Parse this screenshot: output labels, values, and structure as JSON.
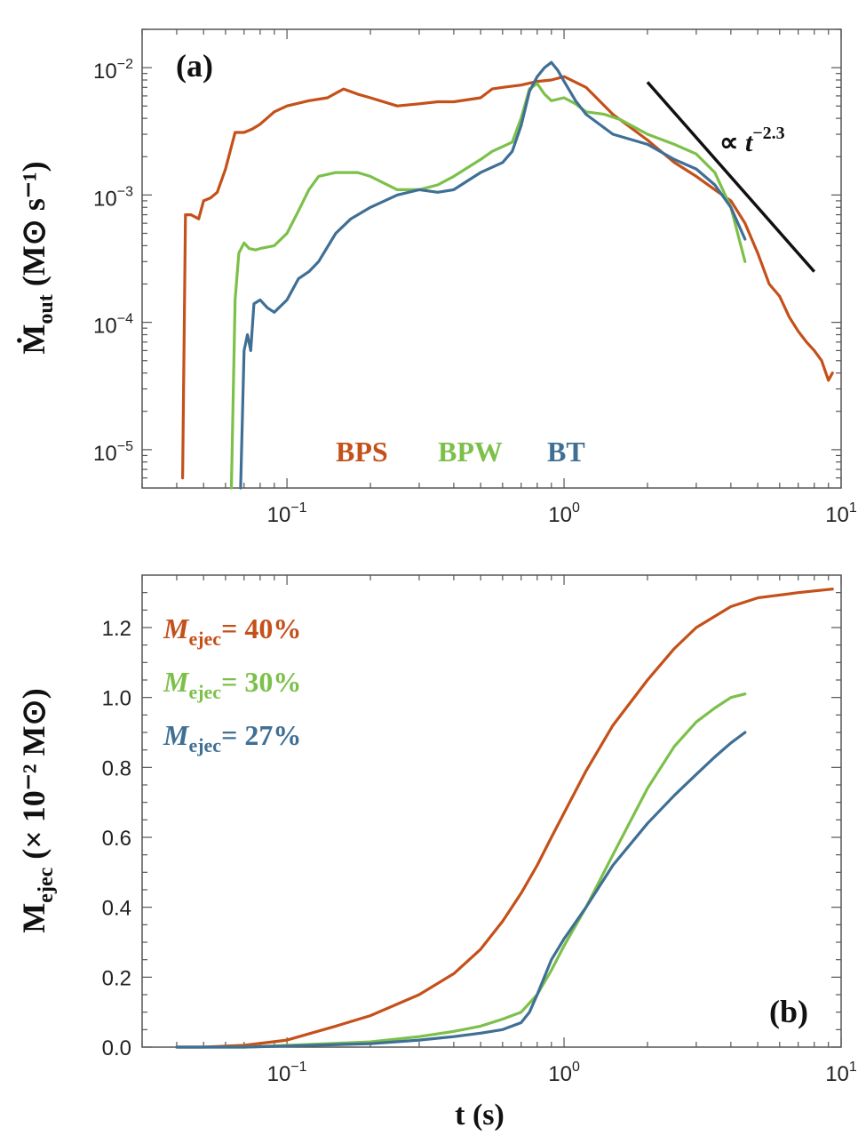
{
  "colors": {
    "BPS": "#c4501a",
    "BPW": "#7cc04a",
    "BT": "#3f6f95",
    "black": "#111111"
  },
  "chart_data": [
    {
      "type": "line",
      "panel_label": "(a)",
      "ylabel_main": "Ṁ",
      "ylabel_sub": "out",
      "ylabel_unit": "(M⊙ s⁻¹)",
      "xscale": "log",
      "yscale": "log",
      "xlim": [
        0.03,
        10
      ],
      "ylim": [
        5e-06,
        0.02
      ],
      "xticks": [
        {
          "v": 0.1,
          "base": "10",
          "exp": "−1"
        },
        {
          "v": 1,
          "base": "10",
          "exp": "0"
        },
        {
          "v": 10,
          "base": "10",
          "exp": "1"
        }
      ],
      "yticks": [
        {
          "v": 1e-05,
          "base": "10",
          "exp": "−5"
        },
        {
          "v": 0.0001,
          "base": "10",
          "exp": "−4"
        },
        {
          "v": 0.001,
          "base": "10",
          "exp": "−3"
        },
        {
          "v": 0.01,
          "base": "10",
          "exp": "−2"
        }
      ],
      "legend": [
        "BPS",
        "BPW",
        "BT"
      ],
      "annotation": {
        "prefix": "∝ ",
        "var": "t",
        "exp": "−2.3"
      },
      "powerlaw_line": {
        "x": [
          2.0,
          8.0
        ],
        "y": [
          0.0077,
          0.00025
        ]
      },
      "series": [
        {
          "name": "BPS",
          "x": [
            0.042,
            0.043,
            0.045,
            0.048,
            0.05,
            0.053,
            0.056,
            0.06,
            0.065,
            0.07,
            0.075,
            0.08,
            0.09,
            0.1,
            0.12,
            0.14,
            0.16,
            0.18,
            0.2,
            0.25,
            0.3,
            0.35,
            0.4,
            0.5,
            0.55,
            0.6,
            0.7,
            0.8,
            0.9,
            1.0,
            1.2,
            1.5,
            2.0,
            2.5,
            3.0,
            3.5,
            4.0,
            4.5,
            5.0,
            5.5,
            6.0,
            6.5,
            7.0,
            7.5,
            8.0,
            8.5,
            9.0,
            9.3
          ],
          "y": [
            6e-06,
            0.0007,
            0.0007,
            0.00065,
            0.0009,
            0.00095,
            0.00105,
            0.0016,
            0.0031,
            0.0031,
            0.0033,
            0.0036,
            0.0045,
            0.005,
            0.0055,
            0.0058,
            0.0068,
            0.0062,
            0.0058,
            0.005,
            0.0052,
            0.0054,
            0.0054,
            0.0058,
            0.0068,
            0.007,
            0.0073,
            0.0078,
            0.008,
            0.0085,
            0.007,
            0.0043,
            0.0027,
            0.0018,
            0.0014,
            0.0011,
            0.0009,
            0.0006,
            0.00035,
            0.0002,
            0.00016,
            0.00011,
            8.5e-05,
            7e-05,
            6e-05,
            5e-05,
            3.5e-05,
            4e-05
          ]
        },
        {
          "name": "BPW",
          "x": [
            0.063,
            0.065,
            0.067,
            0.07,
            0.073,
            0.077,
            0.08,
            0.09,
            0.1,
            0.11,
            0.12,
            0.13,
            0.15,
            0.18,
            0.2,
            0.25,
            0.3,
            0.35,
            0.4,
            0.5,
            0.55,
            0.6,
            0.65,
            0.7,
            0.75,
            0.8,
            0.85,
            0.9,
            1.0,
            1.1,
            1.2,
            1.4,
            1.6,
            2.0,
            2.5,
            3.0,
            3.5,
            4.0,
            4.5
          ],
          "y": [
            5e-06,
            0.00015,
            0.00035,
            0.00042,
            0.00038,
            0.00037,
            0.00038,
            0.0004,
            0.0005,
            0.00075,
            0.0011,
            0.0014,
            0.0015,
            0.0015,
            0.0014,
            0.0011,
            0.0011,
            0.0012,
            0.0014,
            0.0019,
            0.0022,
            0.0024,
            0.0026,
            0.004,
            0.0068,
            0.0075,
            0.0062,
            0.0055,
            0.0058,
            0.0052,
            0.0045,
            0.0043,
            0.0039,
            0.003,
            0.0025,
            0.0021,
            0.0015,
            0.0008,
            0.0003
          ]
        },
        {
          "name": "BT",
          "x": [
            0.068,
            0.07,
            0.072,
            0.074,
            0.076,
            0.08,
            0.085,
            0.09,
            0.1,
            0.11,
            0.12,
            0.13,
            0.15,
            0.17,
            0.2,
            0.25,
            0.3,
            0.35,
            0.4,
            0.45,
            0.5,
            0.6,
            0.65,
            0.7,
            0.75,
            0.8,
            0.85,
            0.9,
            0.95,
            1.0,
            1.1,
            1.2,
            1.5,
            2.0,
            2.5,
            3.0,
            3.5,
            4.0,
            4.5
          ],
          "y": [
            5e-06,
            6e-05,
            8e-05,
            6e-05,
            0.00014,
            0.00015,
            0.00013,
            0.00012,
            0.00015,
            0.00022,
            0.00025,
            0.0003,
            0.0005,
            0.00065,
            0.0008,
            0.001,
            0.0011,
            0.00105,
            0.0011,
            0.0013,
            0.0015,
            0.0018,
            0.0022,
            0.0035,
            0.0065,
            0.0085,
            0.01,
            0.011,
            0.0095,
            0.0078,
            0.0055,
            0.0043,
            0.003,
            0.0025,
            0.0019,
            0.0016,
            0.0012,
            0.0008,
            0.00045
          ]
        }
      ]
    },
    {
      "type": "line",
      "panel_label": "(b)",
      "ylabel_main": "M",
      "ylabel_sub": "ejec",
      "ylabel_unit": "(× 10⁻² M⊙)",
      "xlabel": "t (s)",
      "xscale": "log",
      "yscale": "linear",
      "xlim": [
        0.03,
        10
      ],
      "ylim": [
        0,
        1.35
      ],
      "xticks": [
        {
          "v": 0.1,
          "base": "10",
          "exp": "−1"
        },
        {
          "v": 1,
          "base": "10",
          "exp": "0"
        },
        {
          "v": 10,
          "base": "10",
          "exp": "1"
        }
      ],
      "yticks": [
        0.0,
        0.2,
        0.4,
        0.6,
        0.8,
        1.0,
        1.2
      ],
      "ytick_labels": [
        "0.0",
        "0.2",
        "0.4",
        "0.6",
        "0.8",
        "1.0",
        "1.2"
      ],
      "legend": [
        {
          "name": "BPS",
          "sub": "ejec",
          "value": "= 40%"
        },
        {
          "name": "BPW",
          "sub": "ejec",
          "value": "= 30%"
        },
        {
          "name": "BT",
          "sub": "ejec",
          "value": "= 27%"
        }
      ],
      "legend_var": "M",
      "series": [
        {
          "name": "BPS",
          "x": [
            0.04,
            0.05,
            0.07,
            0.1,
            0.15,
            0.2,
            0.3,
            0.4,
            0.5,
            0.6,
            0.7,
            0.8,
            0.9,
            1.0,
            1.2,
            1.5,
            2.0,
            2.5,
            3.0,
            4.0,
            5.0,
            7.0,
            9.3
          ],
          "y": [
            0.0,
            0.0,
            0.005,
            0.02,
            0.06,
            0.09,
            0.15,
            0.21,
            0.28,
            0.36,
            0.44,
            0.52,
            0.6,
            0.67,
            0.79,
            0.92,
            1.05,
            1.14,
            1.2,
            1.26,
            1.285,
            1.3,
            1.31
          ]
        },
        {
          "name": "BPW",
          "x": [
            0.04,
            0.07,
            0.1,
            0.2,
            0.3,
            0.4,
            0.5,
            0.6,
            0.7,
            0.8,
            0.9,
            1.0,
            1.2,
            1.5,
            2.0,
            2.5,
            3.0,
            3.5,
            4.0,
            4.5
          ],
          "y": [
            0.0,
            0.0,
            0.005,
            0.015,
            0.03,
            0.045,
            0.06,
            0.08,
            0.1,
            0.15,
            0.22,
            0.29,
            0.4,
            0.55,
            0.74,
            0.86,
            0.93,
            0.97,
            1.0,
            1.01
          ]
        },
        {
          "name": "BT",
          "x": [
            0.04,
            0.07,
            0.1,
            0.2,
            0.3,
            0.4,
            0.5,
            0.6,
            0.7,
            0.75,
            0.8,
            0.9,
            1.0,
            1.2,
            1.5,
            2.0,
            2.5,
            3.0,
            3.5,
            4.0,
            4.5
          ],
          "y": [
            0.0,
            0.0,
            0.003,
            0.01,
            0.02,
            0.03,
            0.04,
            0.05,
            0.07,
            0.1,
            0.15,
            0.25,
            0.31,
            0.4,
            0.52,
            0.64,
            0.72,
            0.78,
            0.83,
            0.87,
            0.9
          ]
        }
      ]
    }
  ]
}
